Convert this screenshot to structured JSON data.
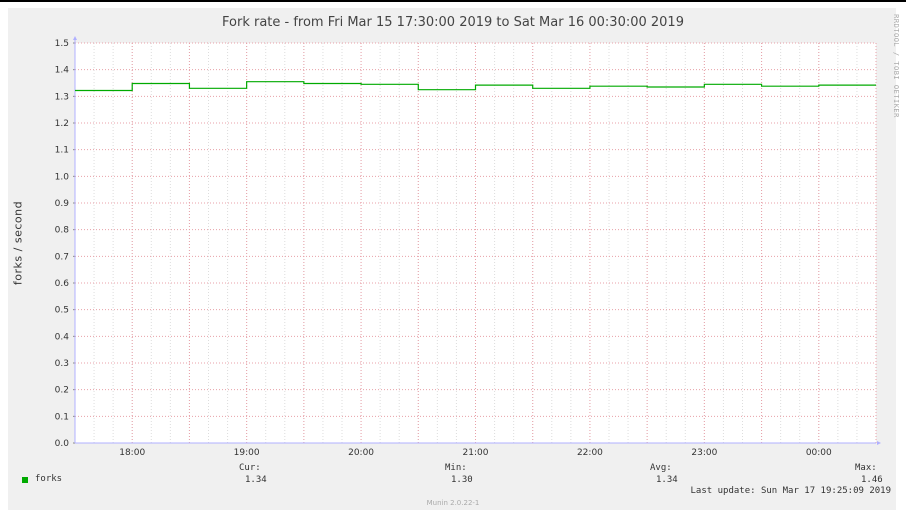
{
  "chart_data": {
    "type": "line",
    "title": "Fork rate - from Fri Mar 15 17:30:00 2019 to Sat Mar 16 00:30:00 2019",
    "ylabel": "forks / second",
    "xlabel": "",
    "ylim": [
      0,
      1.5
    ],
    "yticks": [
      "0.0",
      "0.1",
      "0.2",
      "0.3",
      "0.4",
      "0.5",
      "0.6",
      "0.7",
      "0.8",
      "0.9",
      "1.0",
      "1.1",
      "1.2",
      "1.3",
      "1.4",
      "1.5"
    ],
    "xlim": [
      17.5,
      24.5
    ],
    "xticks": [
      {
        "v": 18,
        "label": "18:00"
      },
      {
        "v": 19,
        "label": "19:00"
      },
      {
        "v": 20,
        "label": "20:00"
      },
      {
        "v": 21,
        "label": "21:00"
      },
      {
        "v": 22,
        "label": "22:00"
      },
      {
        "v": 23,
        "label": "23:00"
      },
      {
        "v": 24,
        "label": "00:00"
      }
    ],
    "grid": true,
    "series": [
      {
        "name": "forks",
        "color": "#00aa00",
        "x": [
          17.5,
          18.0,
          18.5,
          19.0,
          19.5,
          20.0,
          20.5,
          21.0,
          21.5,
          22.0,
          22.5,
          23.0,
          23.5,
          24.0
        ],
        "values": [
          1.322,
          1.348,
          1.33,
          1.355,
          1.348,
          1.345,
          1.325,
          1.342,
          1.33,
          1.338,
          1.335,
          1.345,
          1.338,
          1.342
        ],
        "end_x": 24.5
      }
    ]
  },
  "legend": {
    "swatch_color": "#00aa00",
    "name": "forks",
    "cur_label": "Cur:",
    "cur_value": "1.34",
    "min_label": "Min:",
    "min_value": "1.30",
    "avg_label": "Avg:",
    "avg_value": "1.34",
    "max_label": "Max:",
    "max_value": "1.46"
  },
  "last_update": "Last update: Sun Mar 17 19:25:09 2019",
  "watermark": "RRDTOOL / TOBI OETIKER",
  "footer": "Munin 2.0.22-1"
}
